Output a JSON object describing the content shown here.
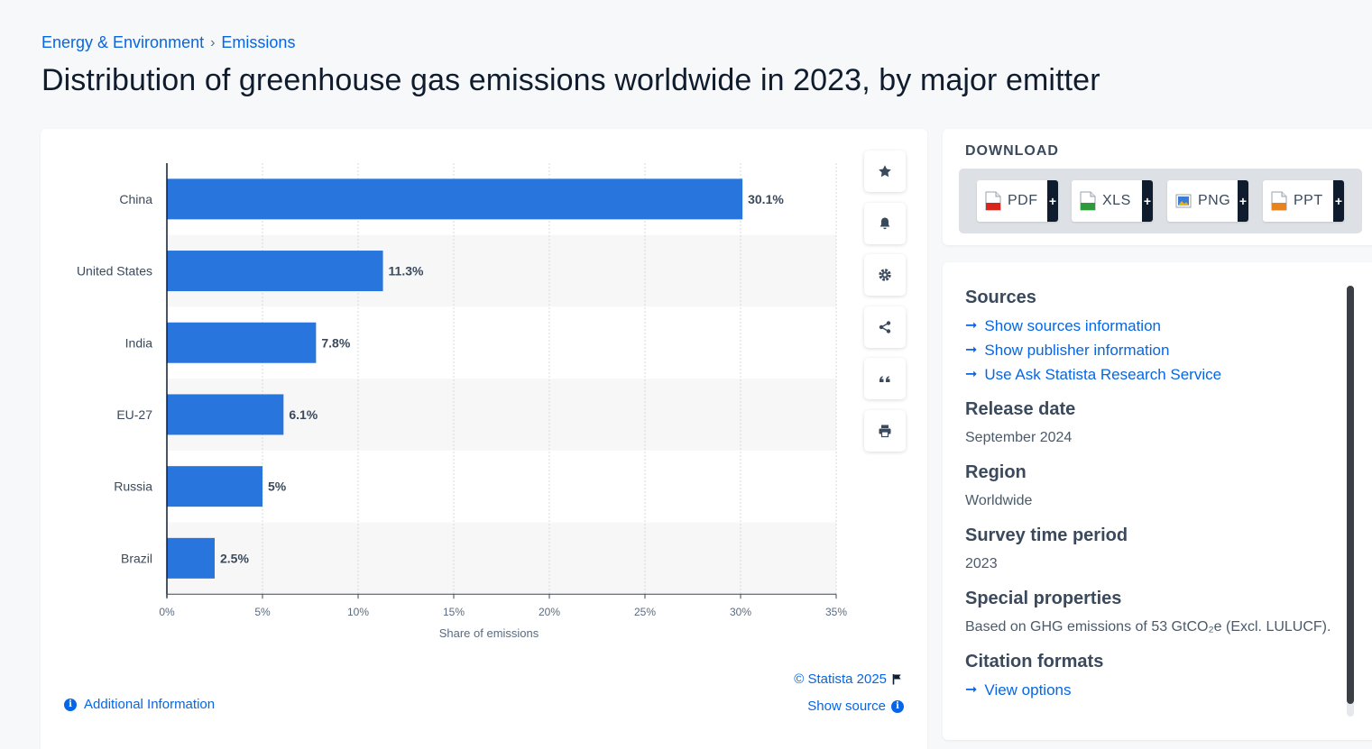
{
  "breadcrumb": {
    "items": [
      "Energy & Environment",
      "Emissions"
    ],
    "separator": "›"
  },
  "page_title": "Distribution of greenhouse gas emissions worldwide in 2023, by major emitter",
  "chart_data": {
    "type": "bar",
    "orientation": "horizontal",
    "title": "",
    "categories": [
      "China",
      "United States",
      "India",
      "EU-27",
      "Russia",
      "Brazil"
    ],
    "values": [
      30.1,
      11.3,
      7.8,
      6.1,
      5,
      2.5
    ],
    "value_labels": [
      "30.1%",
      "11.3%",
      "7.8%",
      "6.1%",
      "5%",
      "2.5%"
    ],
    "xlabel": "Share of emissions",
    "ylabel": "",
    "xlim": [
      0,
      35
    ],
    "x_ticks": [
      0,
      5,
      10,
      15,
      20,
      25,
      30,
      35
    ],
    "x_tick_labels": [
      "0%",
      "5%",
      "10%",
      "15%",
      "20%",
      "25%",
      "30%",
      "35%"
    ],
    "grid": true,
    "bar_color": "#2876dd"
  },
  "toolbar": {
    "icons": [
      "star-icon",
      "bell-icon",
      "gear-icon",
      "share-icon",
      "quote-icon",
      "print-icon"
    ]
  },
  "footer": {
    "copyright": "© Statista 2025",
    "show_source": "Show source",
    "additional_info": "Additional Information"
  },
  "download": {
    "title": "DOWNLOAD",
    "buttons": [
      {
        "label": "PDF",
        "color": "#d9261c"
      },
      {
        "label": "XLS",
        "color": "#2e9b3a"
      },
      {
        "label": "PNG",
        "color": "#3a7bd5"
      },
      {
        "label": "PPT",
        "color": "#e8841f"
      }
    ],
    "plus": "+"
  },
  "info": {
    "sources_heading": "Sources",
    "sources_links": [
      "Show sources information",
      "Show publisher information",
      "Use Ask Statista Research Service"
    ],
    "release_heading": "Release date",
    "release_value": "September 2024",
    "region_heading": "Region",
    "region_value": "Worldwide",
    "survey_heading": "Survey time period",
    "survey_value": "2023",
    "special_heading": "Special properties",
    "special_value": "Based on GHG emissions of 53 GtCO₂e (Excl. LULUCF).",
    "citation_heading": "Citation formats",
    "citation_link": "View options",
    "arrow": "➞"
  },
  "colors": {
    "accent": "#0666e5",
    "bar": "#2876dd",
    "dark": "#0f1c2e"
  }
}
